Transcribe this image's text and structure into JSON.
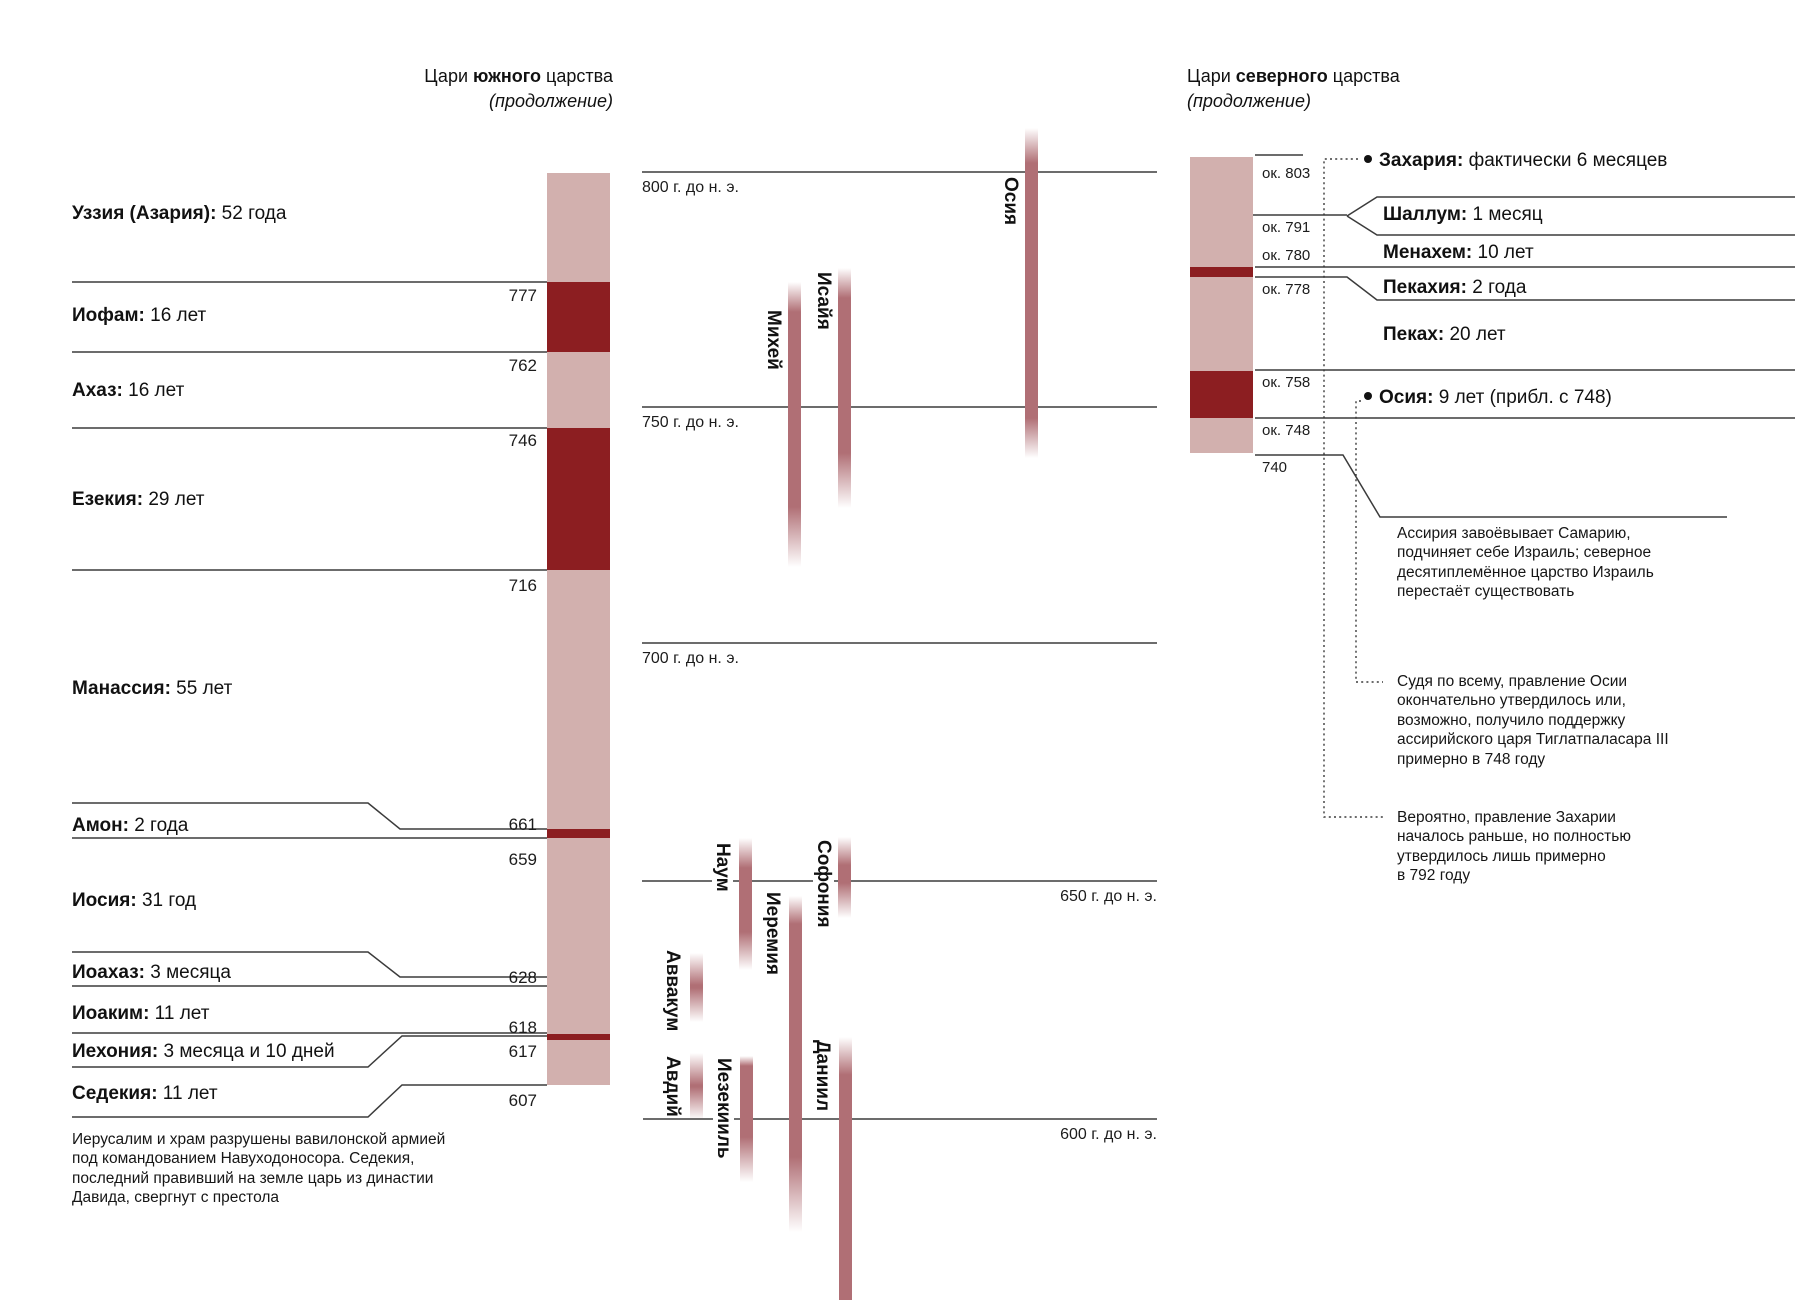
{
  "south_panel": {
    "header_line1_prefix": "Цари ",
    "header_line1_bold": "южного",
    "header_line1_suffix": " царства",
    "header_line2": "(продолжение)",
    "kings": [
      {
        "name": "Уззия (Азария):",
        "value": "52 года"
      },
      {
        "name": "Иофам:",
        "value": "16 лет"
      },
      {
        "name": "Ахаз:",
        "value": "16 лет"
      },
      {
        "name": "Езекия:",
        "value": "29 лет"
      },
      {
        "name": "Манассия:",
        "value": "55 лет"
      },
      {
        "name": "Амон:",
        "value": "2 года"
      },
      {
        "name": "Иосия:",
        "value": "31 год"
      },
      {
        "name": "Иоахаз:",
        "value": "3 месяца"
      },
      {
        "name": "Иоаким:",
        "value": "11 лет"
      },
      {
        "name": "Иехония:",
        "value": "3 месяца и 10 дней"
      },
      {
        "name": "Седекия:",
        "value": "11 лет"
      }
    ],
    "years": [
      "777",
      "762",
      "746",
      "716",
      "661",
      "659",
      "628",
      "618",
      "617",
      "607"
    ],
    "footnote": [
      "Иерусалим и храм разрушены вавилонской армией",
      "под командованием Навуходоносора. Седекия,",
      "последний правивший на земле царь из династии",
      "Давида, свергнут с престола"
    ]
  },
  "north_panel": {
    "header_line1_prefix": "Цари ",
    "header_line1_bold": "северного",
    "header_line1_suffix": " царства",
    "header_line2": "(продолжение)",
    "kings": [
      {
        "name": "Захария:",
        "value": "фактически 6 месяцев",
        "bullet": true
      },
      {
        "name": "Шаллум:",
        "value": "1 месяц",
        "bullet": false
      },
      {
        "name": "Менахем:",
        "value": "10 лет",
        "bullet": false
      },
      {
        "name": "Пекахия:",
        "value": "2 года",
        "bullet": false
      },
      {
        "name": "Пеках:",
        "value": "20 лет",
        "bullet": false
      },
      {
        "name": "Осия:",
        "value": "9 лет (прибл. с 748)",
        "bullet": true
      }
    ],
    "years": [
      "ок. 803",
      "ок. 791",
      "ок. 780",
      "ок. 778",
      "ок. 758",
      "ок. 748",
      "740"
    ],
    "annotations": [
      {
        "id": "assyria-note",
        "lines": [
          "Ассирия завоёвывает Самарию,",
          "подчиняет себе Израиль; северное",
          "десятиплемённое царство Израиль",
          "перестаёт существовать"
        ]
      },
      {
        "id": "hoshea-note",
        "lines": [
          "Судя по всему, правление Осии",
          "окончательно утвердилось или,",
          "возможно, получило поддержку",
          "ассирийского царя Тиглатпаласара III",
          "примерно в 748 году"
        ]
      },
      {
        "id": "zechariah-note",
        "lines": [
          "Вероятно, правление Захарии",
          "началось раньше, но полностью",
          "утвердилось лишь примерно",
          "в 792 году"
        ]
      }
    ]
  },
  "timeline": {
    "labels": [
      "800 г. до н. э.",
      "750 г. до н. э.",
      "700 г. до н. э.",
      "650 г. до н. э.",
      "600 г. до н. э."
    ]
  },
  "prophets": [
    "Осия",
    "Михей",
    "Исайя",
    "Наум",
    "Софония",
    "Иеремия",
    "Аввакум",
    "Авдий",
    "Иезекииль",
    "Даниил"
  ],
  "colors": {
    "light_band": "#d2b0ae",
    "dark_band": "#8c1e21",
    "prophet_bar": "#b06f75",
    "rule": "#3b3b3b",
    "text": "#111111"
  }
}
